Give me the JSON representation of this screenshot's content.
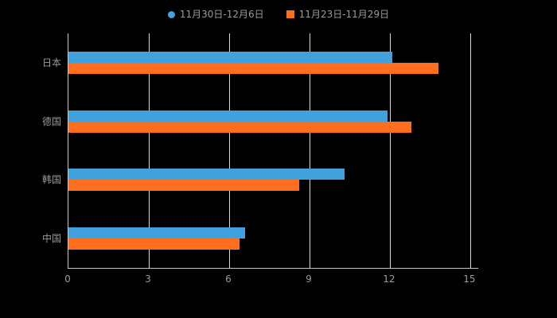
{
  "chart_data": {
    "type": "bar",
    "orientation": "horizontal",
    "title": "",
    "categories": [
      "日本",
      "德国",
      "韩国",
      "中国"
    ],
    "series": [
      {
        "name": "11月30日-12月6日",
        "color": "#41a1dc",
        "values": [
          12.1,
          11.9,
          10.3,
          6.6
        ]
      },
      {
        "name": "11月23日-11月29日",
        "color": "#ff6d1e",
        "values": [
          13.8,
          12.8,
          8.6,
          6.4
        ]
      }
    ],
    "xticks": [
      0,
      3,
      6,
      9,
      12,
      15
    ],
    "xlim": [
      0,
      15.3
    ],
    "ylabel": "",
    "xlabel": "",
    "grid": true,
    "legend_position": "top",
    "theme": {
      "background": "#000000",
      "axis_color": "#c9c9c9",
      "gridline_color": "#d9d9d9",
      "text_color": "#9a9a9a"
    }
  }
}
